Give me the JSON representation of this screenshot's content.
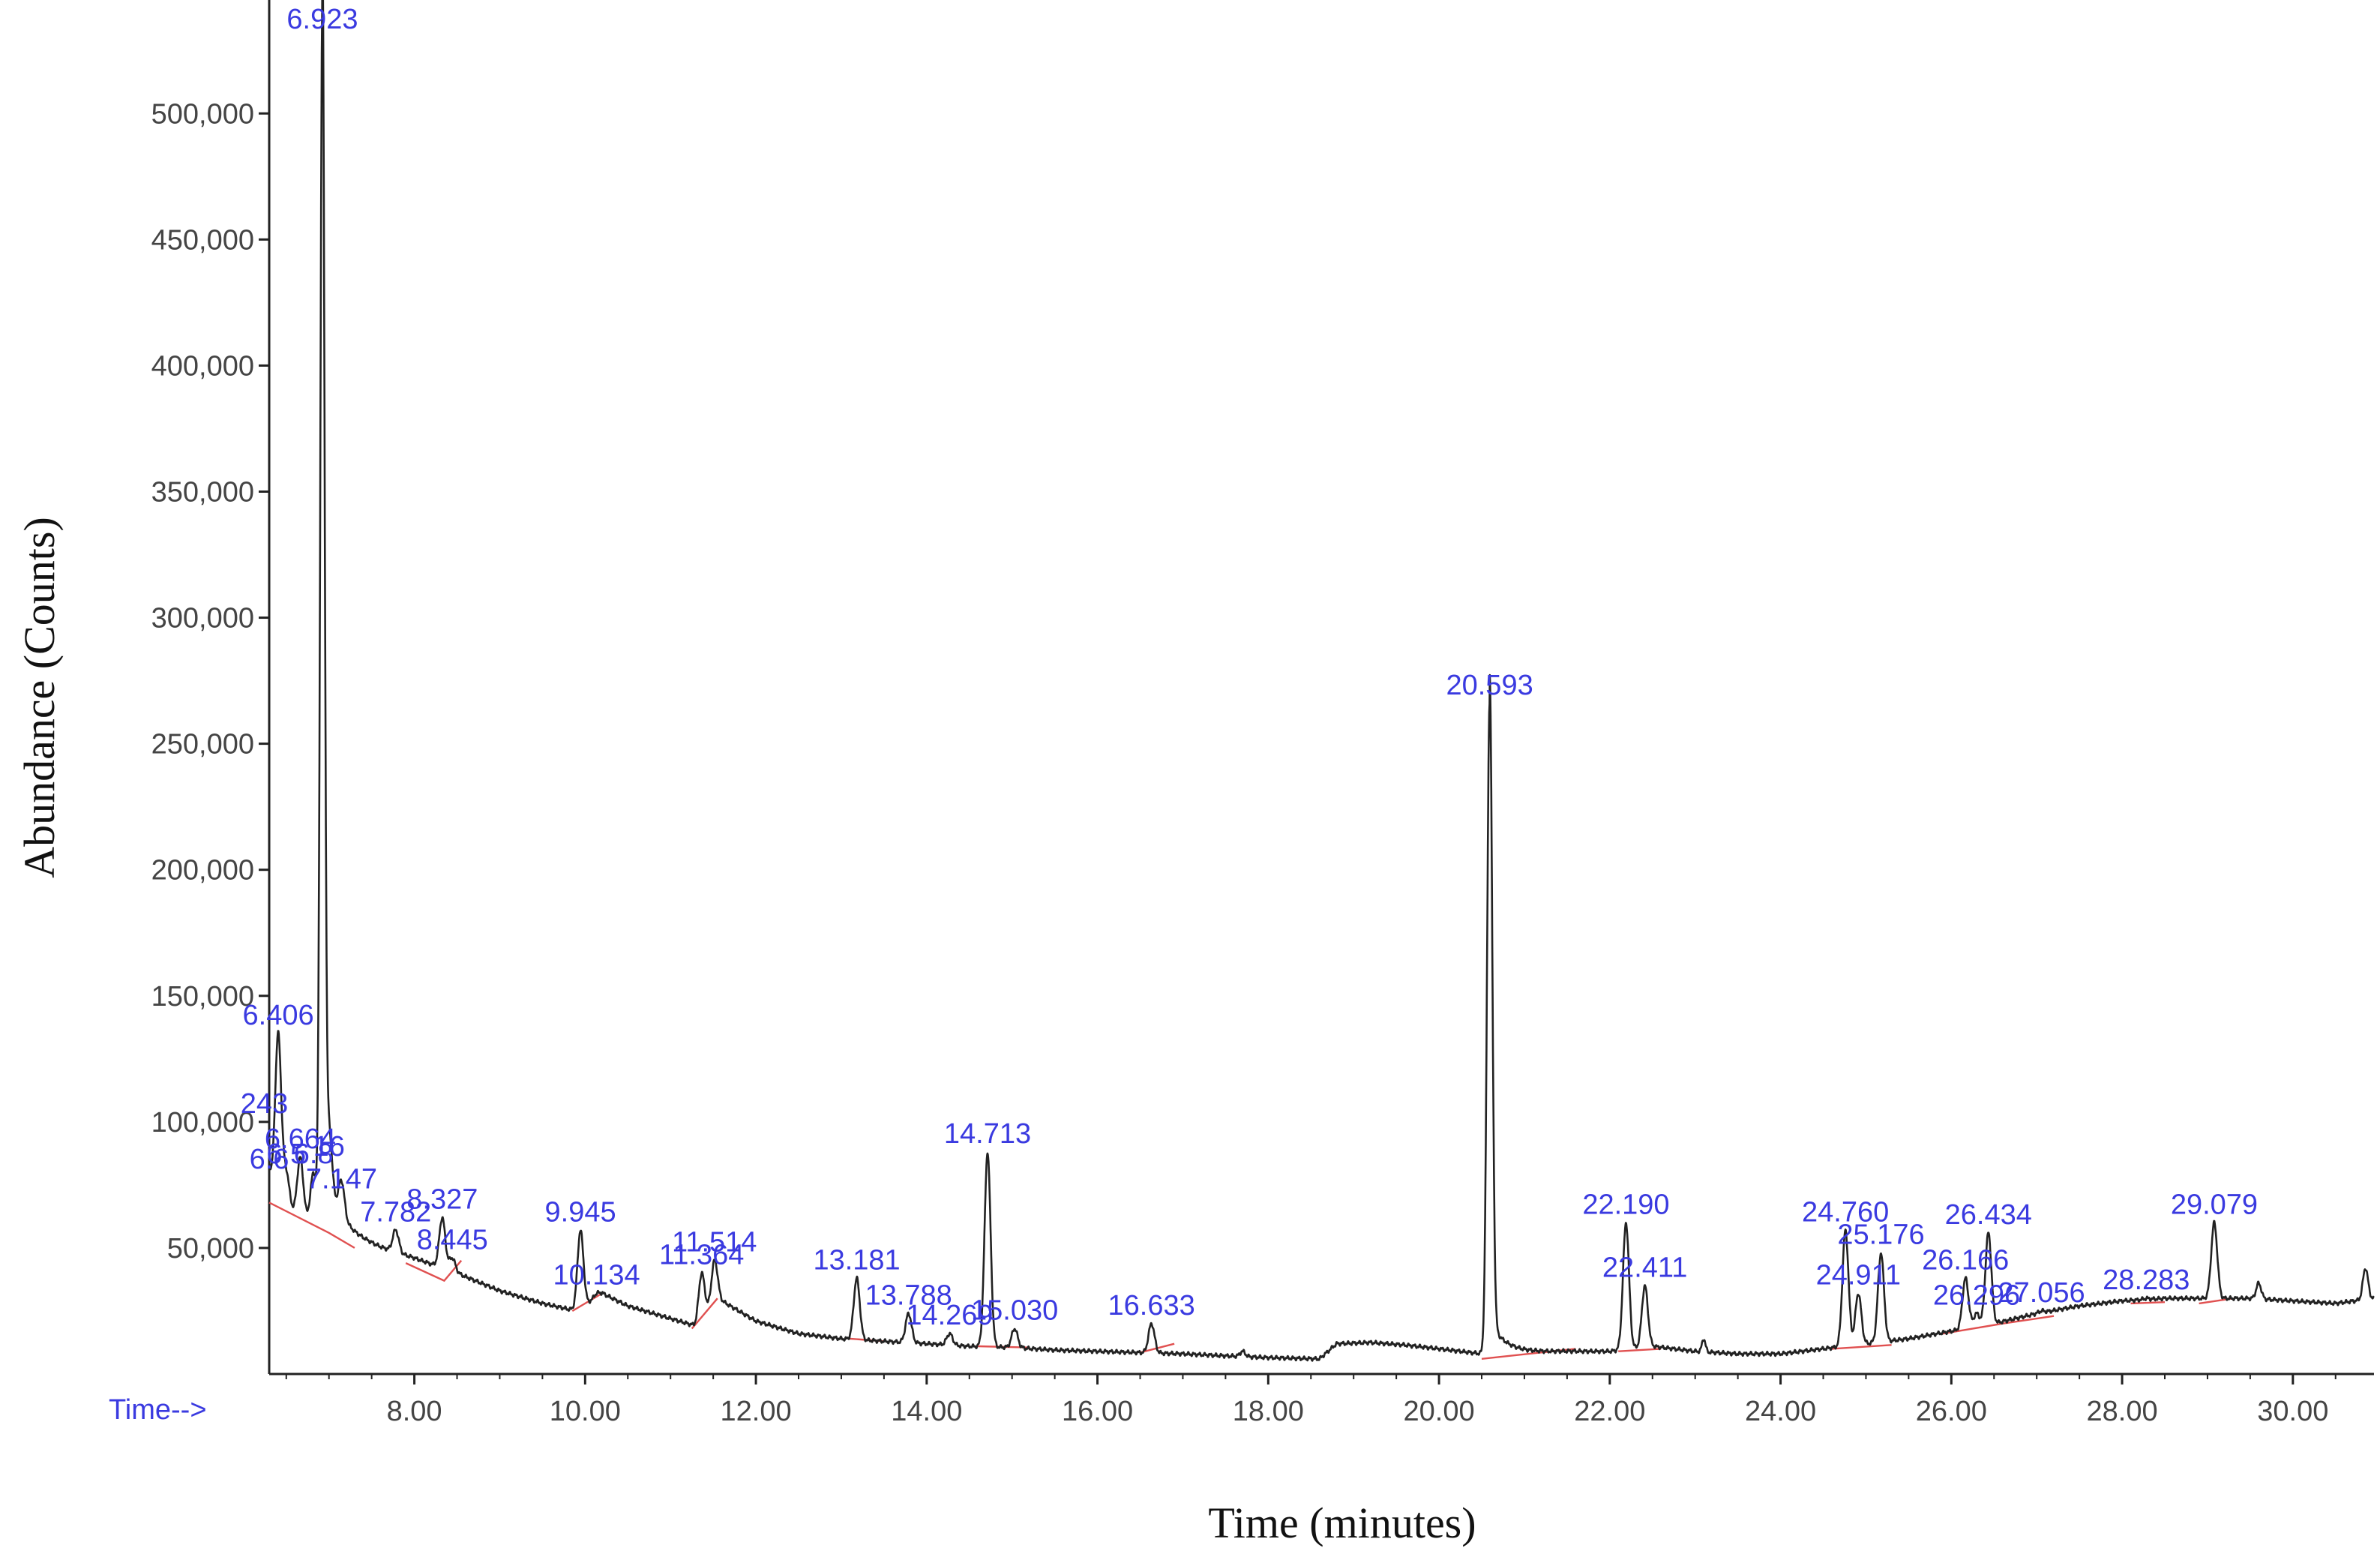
{
  "chart_data": {
    "type": "line",
    "title": "",
    "xlabel": "Time (minutes)",
    "ylabel": "Abundance (Counts)",
    "x_axis_prefix": "Time-->",
    "xlim": [
      6.3,
      30.95
    ],
    "ylim": [
      0,
      545000
    ],
    "x_ticks": [
      "8.00",
      "10.00",
      "12.00",
      "14.00",
      "16.00",
      "18.00",
      "20.00",
      "22.00",
      "24.00",
      "26.00",
      "28.00",
      "30.00"
    ],
    "x_tick_values": [
      8,
      10,
      12,
      14,
      16,
      18,
      20,
      22,
      24,
      26,
      28,
      30
    ],
    "y_ticks": [
      "50,000",
      "100,000",
      "150,000",
      "200,000",
      "250,000",
      "300,000",
      "350,000",
      "400,000",
      "450,000",
      "500,000"
    ],
    "y_tick_values": [
      50000,
      100000,
      150000,
      200000,
      250000,
      300000,
      350000,
      400000,
      450000,
      500000
    ],
    "colors": {
      "trace": "#222222",
      "baseline": "#e05050",
      "peak_label": "#3a3ae0",
      "tick_text": "#444444"
    },
    "peaks": [
      {
        "label": "6.406",
        "x": 6.406,
        "y": 135000
      },
      {
        "label": "243",
        "x": 6.243,
        "y": 100000
      },
      {
        "label": "6.6",
        "x": 6.3,
        "y": 78000
      },
      {
        "label": "6.664",
        "x": 6.664,
        "y": 86000
      },
      {
        "label": "6.5",
        "x": 6.5,
        "y": 80000
      },
      {
        "label": "6.8",
        "x": 6.82,
        "y": 80000
      },
      {
        "label": "6.923",
        "x": 6.923,
        "y": 540000
      },
      {
        "label": "16",
        "x": 7.0,
        "y": 83000
      },
      {
        "label": "7.147",
        "x": 7.147,
        "y": 70000
      },
      {
        "label": "7.782",
        "x": 7.782,
        "y": 57000
      },
      {
        "label": "8.327",
        "x": 8.327,
        "y": 62000
      },
      {
        "label": "8.445",
        "x": 8.445,
        "y": 46000
      },
      {
        "label": "9.945",
        "x": 9.945,
        "y": 57000
      },
      {
        "label": "10.134",
        "x": 10.134,
        "y": 32000
      },
      {
        "label": "11.364",
        "x": 11.364,
        "y": 40000
      },
      {
        "label": "11.514",
        "x": 11.514,
        "y": 45000
      },
      {
        "label": "13.181",
        "x": 13.181,
        "y": 38000
      },
      {
        "label": "13.788",
        "x": 13.788,
        "y": 24000
      },
      {
        "label": "14.269",
        "x": 14.269,
        "y": 16000
      },
      {
        "label": "14.713",
        "x": 14.713,
        "y": 88000
      },
      {
        "label": "15.030",
        "x": 15.03,
        "y": 18000
      },
      {
        "label": "16.633",
        "x": 16.633,
        "y": 20000
      },
      {
        "label": "20.593",
        "x": 20.593,
        "y": 266000
      },
      {
        "label": "22.190",
        "x": 22.19,
        "y": 60000
      },
      {
        "label": "22.411",
        "x": 22.411,
        "y": 35000
      },
      {
        "label": "24.760",
        "x": 24.76,
        "y": 57000
      },
      {
        "label": "24.911",
        "x": 24.911,
        "y": 32000
      },
      {
        "label": "25.176",
        "x": 25.176,
        "y": 48000
      },
      {
        "label": "26.166",
        "x": 26.166,
        "y": 38000
      },
      {
        "label": "26.434",
        "x": 26.434,
        "y": 56000
      },
      {
        "label": "26.296",
        "x": 26.296,
        "y": 24000
      },
      {
        "label": "27.056",
        "x": 27.056,
        "y": 25000
      },
      {
        "label": "28.283",
        "x": 28.283,
        "y": 30000
      },
      {
        "label": "29.079",
        "x": 29.079,
        "y": 60000
      }
    ],
    "trace_profile": [
      [
        6.3,
        78000
      ],
      [
        6.5,
        66000
      ],
      [
        6.7,
        62000
      ],
      [
        6.9,
        59000
      ],
      [
        7.2,
        55000
      ],
      [
        7.6,
        50000
      ],
      [
        8.0,
        46000
      ],
      [
        8.5,
        40000
      ],
      [
        9.0,
        33000
      ],
      [
        9.5,
        28000
      ],
      [
        9.9,
        25000
      ],
      [
        10.2,
        32000
      ],
      [
        10.5,
        27000
      ],
      [
        11.0,
        22000
      ],
      [
        11.3,
        19000
      ],
      [
        11.55,
        30000
      ],
      [
        12.0,
        21000
      ],
      [
        12.5,
        16000
      ],
      [
        13.0,
        14000
      ],
      [
        13.5,
        13000
      ],
      [
        14.0,
        12000
      ],
      [
        14.5,
        11000
      ],
      [
        15.0,
        10500
      ],
      [
        15.5,
        9500
      ],
      [
        16.0,
        9000
      ],
      [
        16.5,
        8500
      ],
      [
        17.0,
        8000
      ],
      [
        17.5,
        7200
      ],
      [
        18.0,
        6500
      ],
      [
        18.6,
        6000
      ],
      [
        18.8,
        12000
      ],
      [
        19.2,
        12500
      ],
      [
        19.6,
        11500
      ],
      [
        20.0,
        10000
      ],
      [
        20.5,
        8000
      ],
      [
        21.0,
        8500
      ],
      [
        21.5,
        9000
      ],
      [
        22.0,
        9000
      ],
      [
        22.5,
        11000
      ],
      [
        23.0,
        9000
      ],
      [
        23.5,
        8000
      ],
      [
        24.0,
        8000
      ],
      [
        24.5,
        10000
      ],
      [
        25.0,
        12000
      ],
      [
        25.5,
        14000
      ],
      [
        26.0,
        17000
      ],
      [
        26.5,
        20000
      ],
      [
        27.0,
        24000
      ],
      [
        27.5,
        27000
      ],
      [
        28.0,
        29000
      ],
      [
        28.5,
        30000
      ],
      [
        29.0,
        30000
      ],
      [
        29.5,
        30000
      ],
      [
        30.0,
        29000
      ],
      [
        30.5,
        28000
      ],
      [
        30.95,
        30000
      ]
    ],
    "baseline_segments": [
      [
        [
          6.3,
          68000
        ],
        [
          7.0,
          56000
        ],
        [
          7.3,
          50000
        ]
      ],
      [
        [
          7.9,
          44000
        ],
        [
          8.35,
          37000
        ],
        [
          8.55,
          45000
        ]
      ],
      [
        [
          9.85,
          25000
        ],
        [
          10.2,
          32000
        ]
      ],
      [
        [
          11.25,
          18000
        ],
        [
          11.55,
          30000
        ]
      ],
      [
        [
          13.1,
          14000
        ],
        [
          13.5,
          13000
        ]
      ],
      [
        [
          14.6,
          11000
        ],
        [
          15.2,
          10500
        ]
      ],
      [
        [
          16.5,
          8500
        ],
        [
          16.9,
          12000
        ]
      ],
      [
        [
          20.5,
          6000
        ],
        [
          21.6,
          10000
        ]
      ],
      [
        [
          22.1,
          9000
        ],
        [
          22.6,
          10000
        ]
      ],
      [
        [
          24.6,
          10000
        ],
        [
          25.3,
          11500
        ]
      ],
      [
        [
          25.9,
          16000
        ],
        [
          26.6,
          20000
        ],
        [
          27.2,
          23000
        ]
      ],
      [
        [
          28.1,
          28000
        ],
        [
          28.5,
          28500
        ]
      ],
      [
        [
          28.9,
          28000
        ],
        [
          29.3,
          30000
        ]
      ]
    ]
  }
}
